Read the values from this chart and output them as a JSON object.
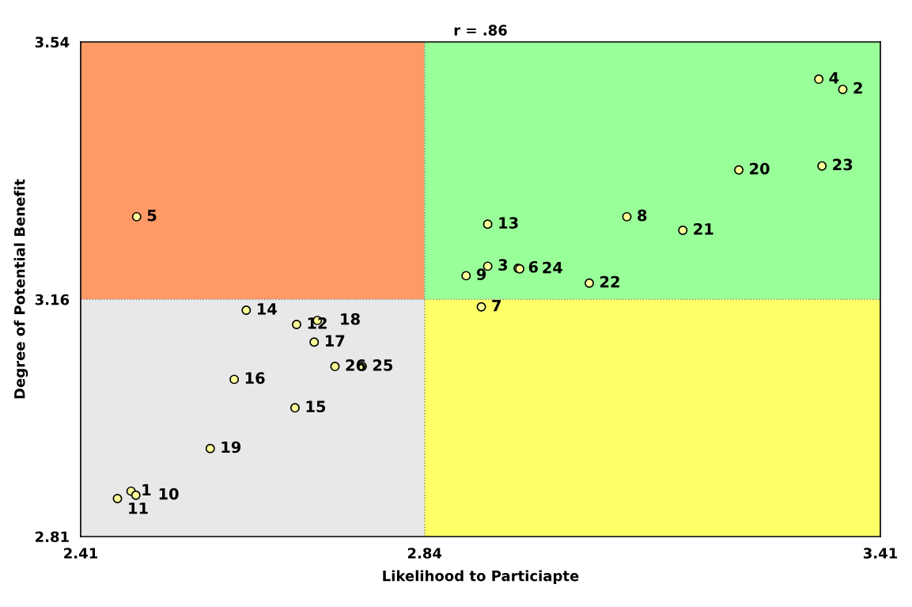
{
  "chart_data": {
    "type": "scatter",
    "title": "r = .86",
    "xlabel": "Likelihood to Particiapte",
    "ylabel": "Degree of Potential Benefit",
    "xlim": [
      2.41,
      3.41
    ],
    "ylim": [
      2.81,
      3.54
    ],
    "xticks": [
      2.41,
      2.84,
      3.41
    ],
    "yticks": [
      2.81,
      3.16,
      3.54
    ],
    "grid": false,
    "legend": false,
    "marker": "circle",
    "ref_lines": [
      {
        "axis": "x",
        "value": 2.84,
        "color": "#808080",
        "line_style": "dotted"
      },
      {
        "axis": "y",
        "value": 3.16,
        "color": "#808080",
        "line_style": "dotted"
      }
    ],
    "series": [
      {
        "color": "#ffff99",
        "x": [
          2.473,
          3.363,
          2.919,
          3.333,
          2.48,
          2.957,
          2.911,
          3.093,
          2.892,
          2.479,
          2.456,
          2.68,
          2.919,
          2.617,
          2.678,
          2.602,
          2.702,
          2.706,
          2.572,
          3.233,
          3.163,
          3.046,
          3.337,
          2.959,
          2.762,
          2.728
        ],
        "values": [
          2.877,
          3.47,
          3.209,
          3.485,
          3.282,
          3.206,
          3.149,
          3.282,
          3.195,
          2.871,
          2.866,
          3.123,
          3.271,
          3.144,
          3.0,
          3.042,
          3.097,
          3.129,
          2.94,
          3.351,
          3.262,
          3.184,
          3.357,
          3.205,
          3.061,
          3.061
        ]
      }
    ],
    "annotations": [
      {
        "text": "1",
        "x": 2.473,
        "y": 2.877
      },
      {
        "text": "2",
        "x": 3.363,
        "y": 3.47
      },
      {
        "text": "3",
        "x": 2.919,
        "y": 3.209
      },
      {
        "text": "4",
        "x": 3.333,
        "y": 3.485
      },
      {
        "text": "5",
        "x": 2.48,
        "y": 3.282
      },
      {
        "text": "6",
        "x": 2.957,
        "y": 3.206
      },
      {
        "text": "7",
        "x": 2.911,
        "y": 3.149
      },
      {
        "text": "8",
        "x": 3.093,
        "y": 3.282
      },
      {
        "text": "9",
        "x": 2.892,
        "y": 3.195
      },
      {
        "text": "10",
        "x": 2.479,
        "y": 2.871
      },
      {
        "text": "11",
        "x": 2.456,
        "y": 2.866
      },
      {
        "text": "12",
        "x": 2.68,
        "y": 3.123
      },
      {
        "text": "13",
        "x": 2.919,
        "y": 3.271
      },
      {
        "text": "14",
        "x": 2.617,
        "y": 3.144
      },
      {
        "text": "15",
        "x": 2.678,
        "y": 3.0
      },
      {
        "text": "16",
        "x": 2.602,
        "y": 3.042
      },
      {
        "text": "17",
        "x": 2.702,
        "y": 3.097
      },
      {
        "text": "18",
        "x": 2.706,
        "y": 3.129
      },
      {
        "text": "19",
        "x": 2.572,
        "y": 2.94
      },
      {
        "text": "20",
        "x": 3.233,
        "y": 3.351
      },
      {
        "text": "21",
        "x": 3.163,
        "y": 3.262
      },
      {
        "text": "22",
        "x": 3.046,
        "y": 3.184
      },
      {
        "text": "23",
        "x": 3.337,
        "y": 3.357
      },
      {
        "text": "24",
        "x": 2.959,
        "y": 3.205
      },
      {
        "text": "25",
        "x": 2.762,
        "y": 3.061
      },
      {
        "text": "26",
        "x": 2.728,
        "y": 3.061
      }
    ]
  }
}
